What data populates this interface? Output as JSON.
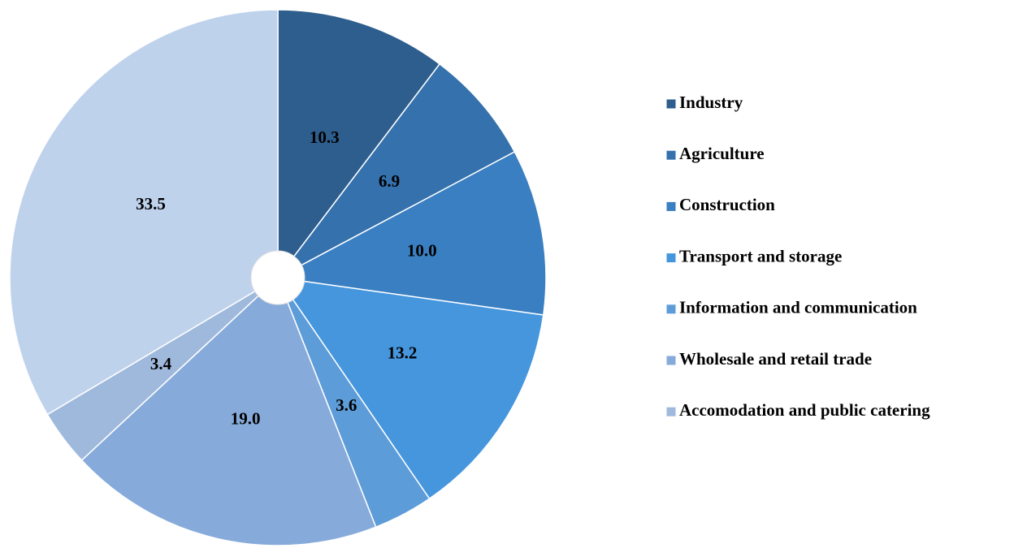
{
  "chart_data": {
    "type": "pie",
    "categories": [
      "Industry",
      "Agriculture",
      "Construction",
      "Transport and storage",
      "Information and communication",
      "Wholesale and retail trade",
      "Accomodation and public catering",
      null
    ],
    "values": [
      10.3,
      6.9,
      10.0,
      13.2,
      3.6,
      19.0,
      3.4,
      33.5
    ],
    "value_labels": [
      "10.3",
      "6.9",
      "10.0",
      "13.2",
      "3.6",
      "19.0",
      "3.4",
      "33.5"
    ],
    "colors": [
      "#2e5e8e",
      "#3471ad",
      "#3a7fc2",
      "#4696de",
      "#5c9cd8",
      "#86abdb",
      "#9fb9dc",
      "#bfd2ec"
    ],
    "legend": "right"
  }
}
